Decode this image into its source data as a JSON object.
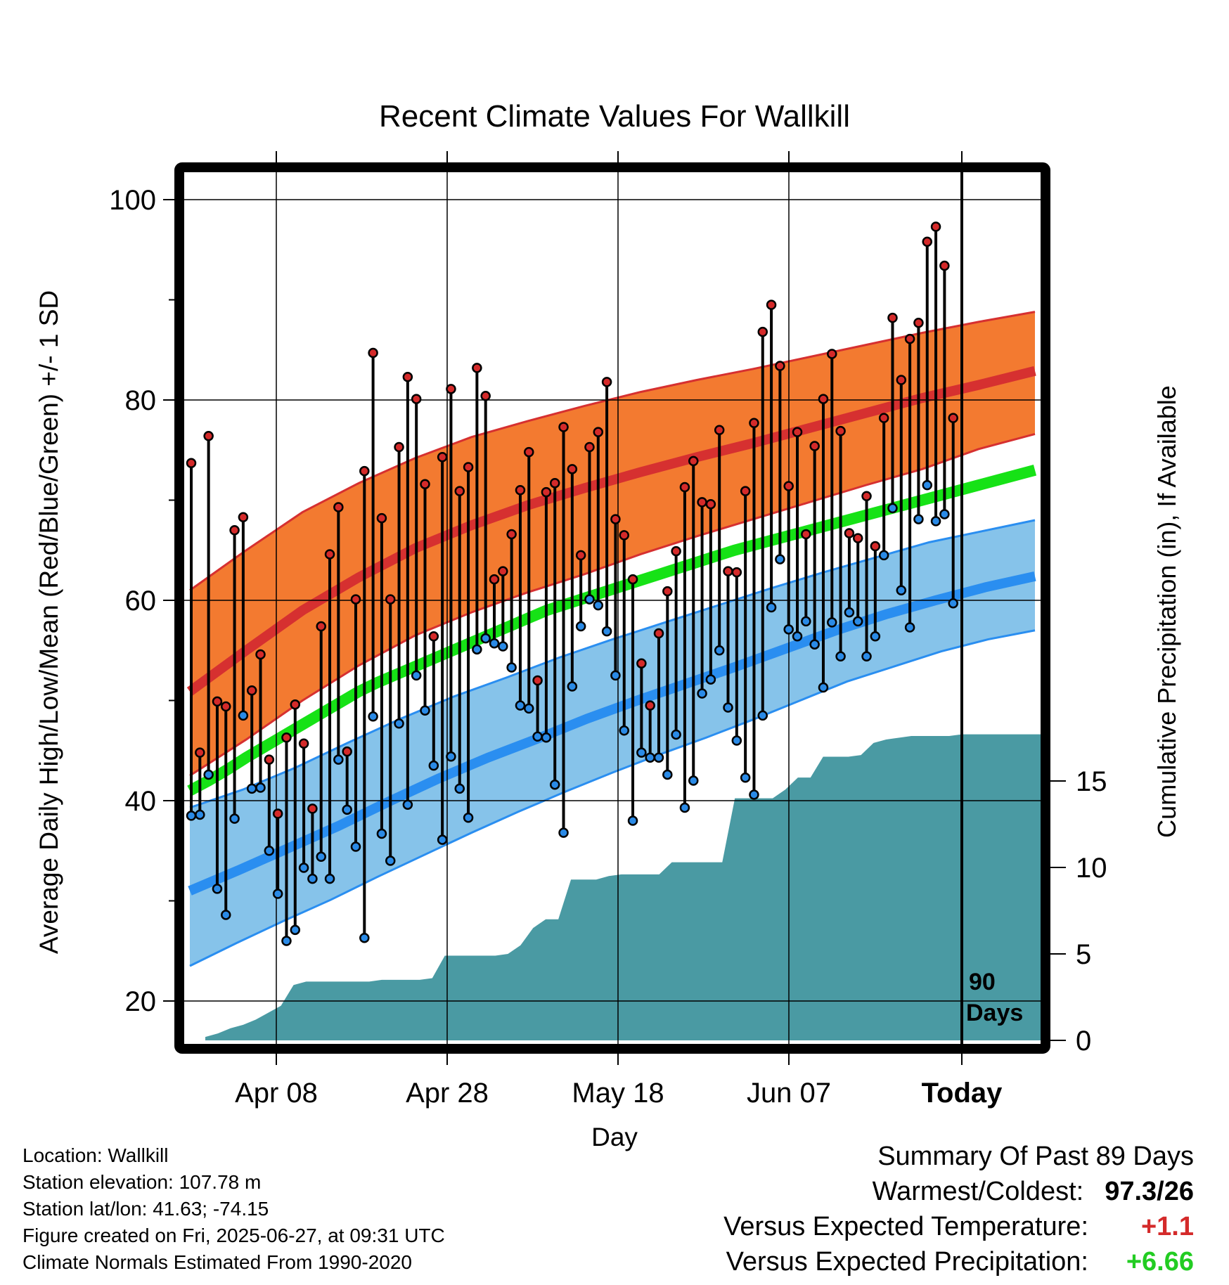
{
  "chart_data": {
    "type": "line",
    "title": "Recent Climate Values For Wallkill",
    "xlabel": "Day",
    "ylabel": "Average Daily High/Low/Mean (Red/Blue/Green) +/- 1 SD",
    "y2label": "Cumulative Precipitation (in), If Available",
    "ylim": [
      16.3,
      102.3
    ],
    "y2lim": [
      0,
      32.5
    ],
    "yticks": [
      "20",
      "40",
      "60",
      "80",
      "100"
    ],
    "y2ticks": [
      "0",
      "5",
      "10",
      "15"
    ],
    "xticks": [
      "Apr 08",
      "Apr 28",
      "May 18",
      "Jun 07",
      "Today"
    ],
    "today_label": [
      "90",
      "Days"
    ],
    "colors": {
      "high_band": "#f37a30",
      "high_line": "#d63030",
      "low_band": "#86c3ea",
      "low_line": "#2a8ef0",
      "mean_line": "#16e216",
      "precip": "#4a9aa3",
      "high_dot": "#d42a2a",
      "low_dot": "#2a8ae6"
    },
    "series": [
      {
        "name": "High",
        "values": [
          73.7,
          44.8,
          76.4,
          49.9,
          49.4,
          67.0,
          68.3,
          51.0,
          54.6,
          44.1,
          38.7,
          46.3,
          49.6,
          45.7,
          39.2,
          57.4,
          64.6,
          69.3,
          44.9,
          60.1,
          72.9,
          84.7,
          68.2,
          60.1,
          75.3,
          82.3,
          80.1,
          71.6,
          56.4,
          74.3,
          81.1,
          70.9,
          73.3,
          83.2,
          80.4,
          62.1,
          62.9,
          66.6,
          71.0,
          74.8,
          52.0,
          70.8,
          71.7,
          77.3,
          73.1,
          64.5,
          75.3,
          76.8,
          81.8,
          68.1,
          66.5,
          62.1,
          53.7,
          49.5,
          56.7,
          60.9,
          64.9,
          71.3,
          73.9,
          69.8,
          69.6,
          77.0,
          62.9,
          62.8,
          70.9,
          77.7,
          86.8,
          89.5,
          83.4,
          71.4,
          76.8,
          66.6,
          75.4,
          80.1,
          84.6,
          76.9,
          66.7,
          66.2,
          70.4,
          65.4,
          78.2,
          88.2,
          82.0,
          86.1,
          87.7,
          95.8,
          97.3,
          93.4,
          78.2
        ]
      },
      {
        "name": "Low",
        "values": [
          38.5,
          38.6,
          42.6,
          31.2,
          28.6,
          38.2,
          48.5,
          41.2,
          41.3,
          35.0,
          30.7,
          26.0,
          27.1,
          33.3,
          32.2,
          34.4,
          32.2,
          44.1,
          39.1,
          35.4,
          26.3,
          48.4,
          36.7,
          34.0,
          47.7,
          39.6,
          52.5,
          49.0,
          43.5,
          36.1,
          44.4,
          41.2,
          38.3,
          55.1,
          56.2,
          55.7,
          55.4,
          53.3,
          49.5,
          49.2,
          46.4,
          46.3,
          41.6,
          36.8,
          51.4,
          57.4,
          60.1,
          59.5,
          56.9,
          52.5,
          47.0,
          38.0,
          44.8,
          44.3,
          44.3,
          42.6,
          46.6,
          39.3,
          42.0,
          50.7,
          52.1,
          55.0,
          49.3,
          46.0,
          42.3,
          40.6,
          48.5,
          59.3,
          64.1,
          57.1,
          56.4,
          57.9,
          55.6,
          51.3,
          57.8,
          54.4,
          58.8,
          57.9,
          54.4,
          56.4,
          64.5,
          69.2,
          61.0,
          57.3,
          68.1,
          71.5,
          67.9,
          68.6,
          59.7
        ]
      },
      {
        "name": "Mean",
        "values": [
          41.0,
          42.0,
          43.1,
          44.3,
          45.4,
          46.5,
          47.6,
          48.7,
          49.8,
          50.9,
          51.8,
          52.6,
          53.4,
          54.2,
          55.0,
          55.8,
          56.6,
          57.4,
          58.2,
          59.0,
          59.6,
          60.2,
          60.8,
          61.4,
          62.0,
          62.6,
          63.2,
          63.8,
          64.4,
          65.0,
          65.5,
          66.0,
          66.5,
          67.0,
          67.5,
          68.0,
          68.5,
          69.0,
          69.5,
          70.0,
          70.5,
          71.0,
          71.5,
          72.0,
          72.5,
          73.0
        ]
      }
    ],
    "normals": {
      "high_mean": [
        50.9,
        55.0,
        59.0,
        62.3,
        65.2,
        67.5,
        69.5,
        71.2,
        72.8,
        74.3,
        75.7,
        77.2,
        78.7,
        80.2,
        81.5,
        82.9
      ],
      "high_upper": [
        61.0,
        65.0,
        68.8,
        71.7,
        74.2,
        76.3,
        77.9,
        79.4,
        80.8,
        82.0,
        83.1,
        84.3,
        85.5,
        86.7,
        87.8,
        88.8
      ],
      "high_lower": [
        42.5,
        46.1,
        50.0,
        53.5,
        56.5,
        58.8,
        60.8,
        62.6,
        64.6,
        66.4,
        68.1,
        69.8,
        71.5,
        73.1,
        75.1,
        76.6
      ],
      "low_mean": [
        31.0,
        33.1,
        35.3,
        37.5,
        39.9,
        42.2,
        44.3,
        46.2,
        48.2,
        50.0,
        51.7,
        53.4,
        55.2,
        57.0,
        58.6,
        60.0,
        61.3,
        62.4
      ],
      "low_upper": [
        39.3,
        41.1,
        43.3,
        45.8,
        48.2,
        50.4,
        52.3,
        54.3,
        56.1,
        57.8,
        59.5,
        61.2,
        62.8,
        64.3,
        65.8,
        66.9,
        68.0
      ],
      "low_lower": [
        23.5,
        25.8,
        28.0,
        30.1,
        32.4,
        34.6,
        36.8,
        38.9,
        40.9,
        42.8,
        44.6,
        46.3,
        48.1,
        50.0,
        51.9,
        53.4,
        54.9,
        56.1,
        57.0
      ]
    },
    "cumulative_precipitation": [
      0.2,
      0.4,
      0.7,
      0.9,
      1.2,
      1.6,
      2.0,
      3.2,
      3.4,
      3.4,
      3.4,
      3.4,
      3.4,
      3.4,
      3.5,
      3.5,
      3.5,
      3.5,
      3.6,
      4.9,
      4.9,
      4.9,
      4.9,
      4.9,
      5.0,
      5.5,
      6.5,
      7.0,
      7.0,
      9.3,
      9.3,
      9.3,
      9.5,
      9.6,
      9.6,
      9.6,
      9.6,
      10.3,
      10.3,
      10.3,
      10.3,
      10.3,
      14.0,
      14.0,
      14.0,
      14.0,
      14.5,
      15.2,
      15.2,
      16.4,
      16.4,
      16.4,
      16.5,
      17.2,
      17.4,
      17.5,
      17.6,
      17.6,
      17.6,
      17.6,
      17.7
    ]
  },
  "footer": {
    "location": "Location: Wallkill",
    "elevation": "Station elevation: 107.78 m",
    "latlon": "Station lat/lon: 41.63; -74.15",
    "created": "Figure created on Fri, 2025-06-27, at 09:31 UTC",
    "normals": "Climate Normals Estimated From 1990-2020"
  },
  "summary": {
    "heading": "Summary Of Past 89 Days",
    "warmest_label": "Warmest/Coldest:",
    "warmest_value": "97.3/26",
    "temp_label": "Versus Expected Temperature:",
    "temp_value": "+1.1",
    "precip_label": "Versus Expected Precipitation:",
    "precip_value": "+6.66",
    "temp_color": "#d42a2a",
    "precip_color": "#22cc22"
  }
}
